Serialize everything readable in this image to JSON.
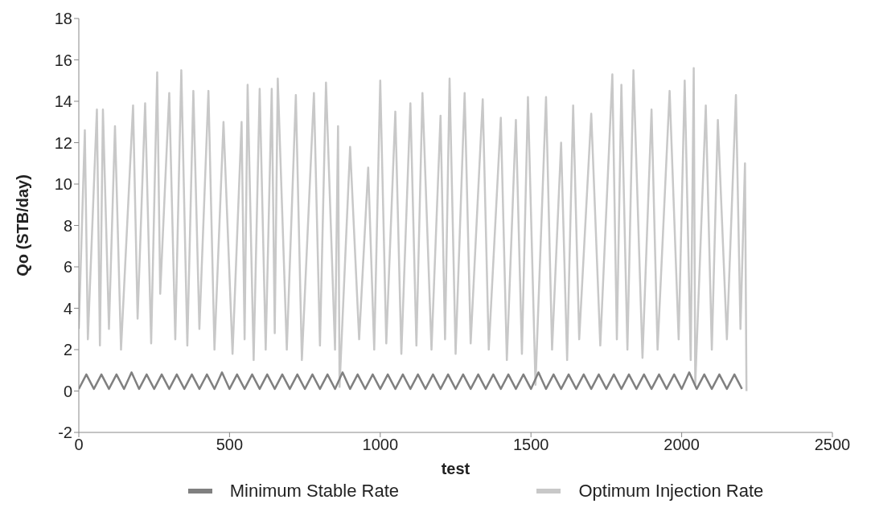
{
  "chart_data": {
    "type": "line",
    "xlabel": "test",
    "ylabel": "Qo (STB/day)",
    "xlim": [
      0,
      2500
    ],
    "xticks": [
      0,
      500,
      1000,
      1500,
      2000,
      2500
    ],
    "ylim": [
      -2,
      18
    ],
    "yticks": [
      -2,
      0,
      2,
      4,
      6,
      8,
      10,
      12,
      14,
      16,
      18
    ],
    "grid": false,
    "legend": "bottom",
    "marker": "none",
    "line_style": "solid",
    "series": [
      {
        "name": "Minimum Stable Rate",
        "color": "#808080",
        "x": [
          0,
          25,
          50,
          75,
          100,
          125,
          150,
          175,
          200,
          225,
          250,
          275,
          300,
          325,
          350,
          375,
          400,
          425,
          450,
          475,
          500,
          525,
          550,
          575,
          600,
          625,
          650,
          675,
          700,
          725,
          750,
          775,
          800,
          825,
          850,
          875,
          900,
          925,
          950,
          975,
          1000,
          1025,
          1050,
          1075,
          1100,
          1125,
          1150,
          1175,
          1200,
          1225,
          1250,
          1275,
          1300,
          1325,
          1350,
          1375,
          1400,
          1425,
          1450,
          1475,
          1500,
          1525,
          1550,
          1575,
          1600,
          1625,
          1650,
          1675,
          1700,
          1725,
          1750,
          1775,
          1800,
          1825,
          1850,
          1875,
          1900,
          1925,
          1950,
          1975,
          2000,
          2025,
          2050,
          2075,
          2100,
          2125,
          2150,
          2175,
          2200
        ],
        "values": [
          0.1,
          0.8,
          0.1,
          0.8,
          0.1,
          0.8,
          0.1,
          0.9,
          0.1,
          0.8,
          0.1,
          0.8,
          0.1,
          0.8,
          0.1,
          0.8,
          0.1,
          0.8,
          0.1,
          0.9,
          0.1,
          0.8,
          0.1,
          0.8,
          0.1,
          0.8,
          0.1,
          0.8,
          0.1,
          0.8,
          0.1,
          0.8,
          0.1,
          0.8,
          0.1,
          0.9,
          0.1,
          0.8,
          0.1,
          0.8,
          0.1,
          0.8,
          0.1,
          0.8,
          0.1,
          0.8,
          0.1,
          0.8,
          0.1,
          0.8,
          0.1,
          0.8,
          0.1,
          0.8,
          0.1,
          0.8,
          0.1,
          0.8,
          0.1,
          0.8,
          0.1,
          0.9,
          0.1,
          0.8,
          0.1,
          0.8,
          0.1,
          0.8,
          0.1,
          0.8,
          0.1,
          0.8,
          0.1,
          0.8,
          0.1,
          0.8,
          0.1,
          0.8,
          0.1,
          0.8,
          0.1,
          0.9,
          0.1,
          0.8,
          0.1,
          0.8,
          0.1,
          0.8,
          0.1
        ]
      },
      {
        "name": "Optimum Injection Rate",
        "color": "#c8c8c8",
        "x": [
          0,
          20,
          30,
          60,
          70,
          80,
          100,
          120,
          140,
          180,
          195,
          220,
          240,
          260,
          270,
          300,
          320,
          340,
          360,
          380,
          400,
          430,
          450,
          480,
          510,
          540,
          550,
          560,
          580,
          600,
          620,
          640,
          650,
          660,
          690,
          720,
          740,
          780,
          800,
          820,
          850,
          860,
          865,
          900,
          930,
          960,
          980,
          1000,
          1020,
          1050,
          1070,
          1100,
          1120,
          1140,
          1170,
          1200,
          1215,
          1230,
          1250,
          1280,
          1300,
          1340,
          1360,
          1400,
          1420,
          1450,
          1470,
          1490,
          1515,
          1550,
          1570,
          1600,
          1620,
          1640,
          1660,
          1700,
          1730,
          1770,
          1785,
          1800,
          1820,
          1840,
          1870,
          1900,
          1920,
          1960,
          1990,
          2010,
          2030,
          2040,
          2045,
          2080,
          2100,
          2120,
          2150,
          2180,
          2195,
          2210,
          2215
        ],
        "values": [
          3,
          12.6,
          2.5,
          13.6,
          2.2,
          13.6,
          3,
          12.8,
          2,
          13.8,
          3.5,
          13.9,
          2.3,
          15.4,
          4.7,
          14.4,
          2.5,
          15.5,
          2.2,
          14.5,
          3,
          14.5,
          2,
          13,
          1.8,
          13,
          2.5,
          14.8,
          1.5,
          14.6,
          2,
          14.6,
          2.8,
          15.1,
          2,
          14.3,
          1.5,
          14.4,
          2.2,
          14.9,
          2,
          12.8,
          0.2,
          11.8,
          2.5,
          10.8,
          2,
          15,
          2.3,
          13.5,
          1.8,
          13.9,
          2.2,
          14.4,
          2,
          13.3,
          2.5,
          15.1,
          1.8,
          14.4,
          2.3,
          14.1,
          2,
          13.2,
          1.5,
          13.1,
          1.8,
          14.2,
          0.3,
          14.2,
          2,
          12,
          1.5,
          13.8,
          2.5,
          13.4,
          2.2,
          15.3,
          2.5,
          14.8,
          2,
          15.5,
          1.6,
          13.6,
          2,
          14.5,
          2.5,
          15,
          1.5,
          15.6,
          0.3,
          13.8,
          2,
          13.1,
          2.5,
          14.3,
          3,
          11,
          0
        ]
      }
    ]
  }
}
